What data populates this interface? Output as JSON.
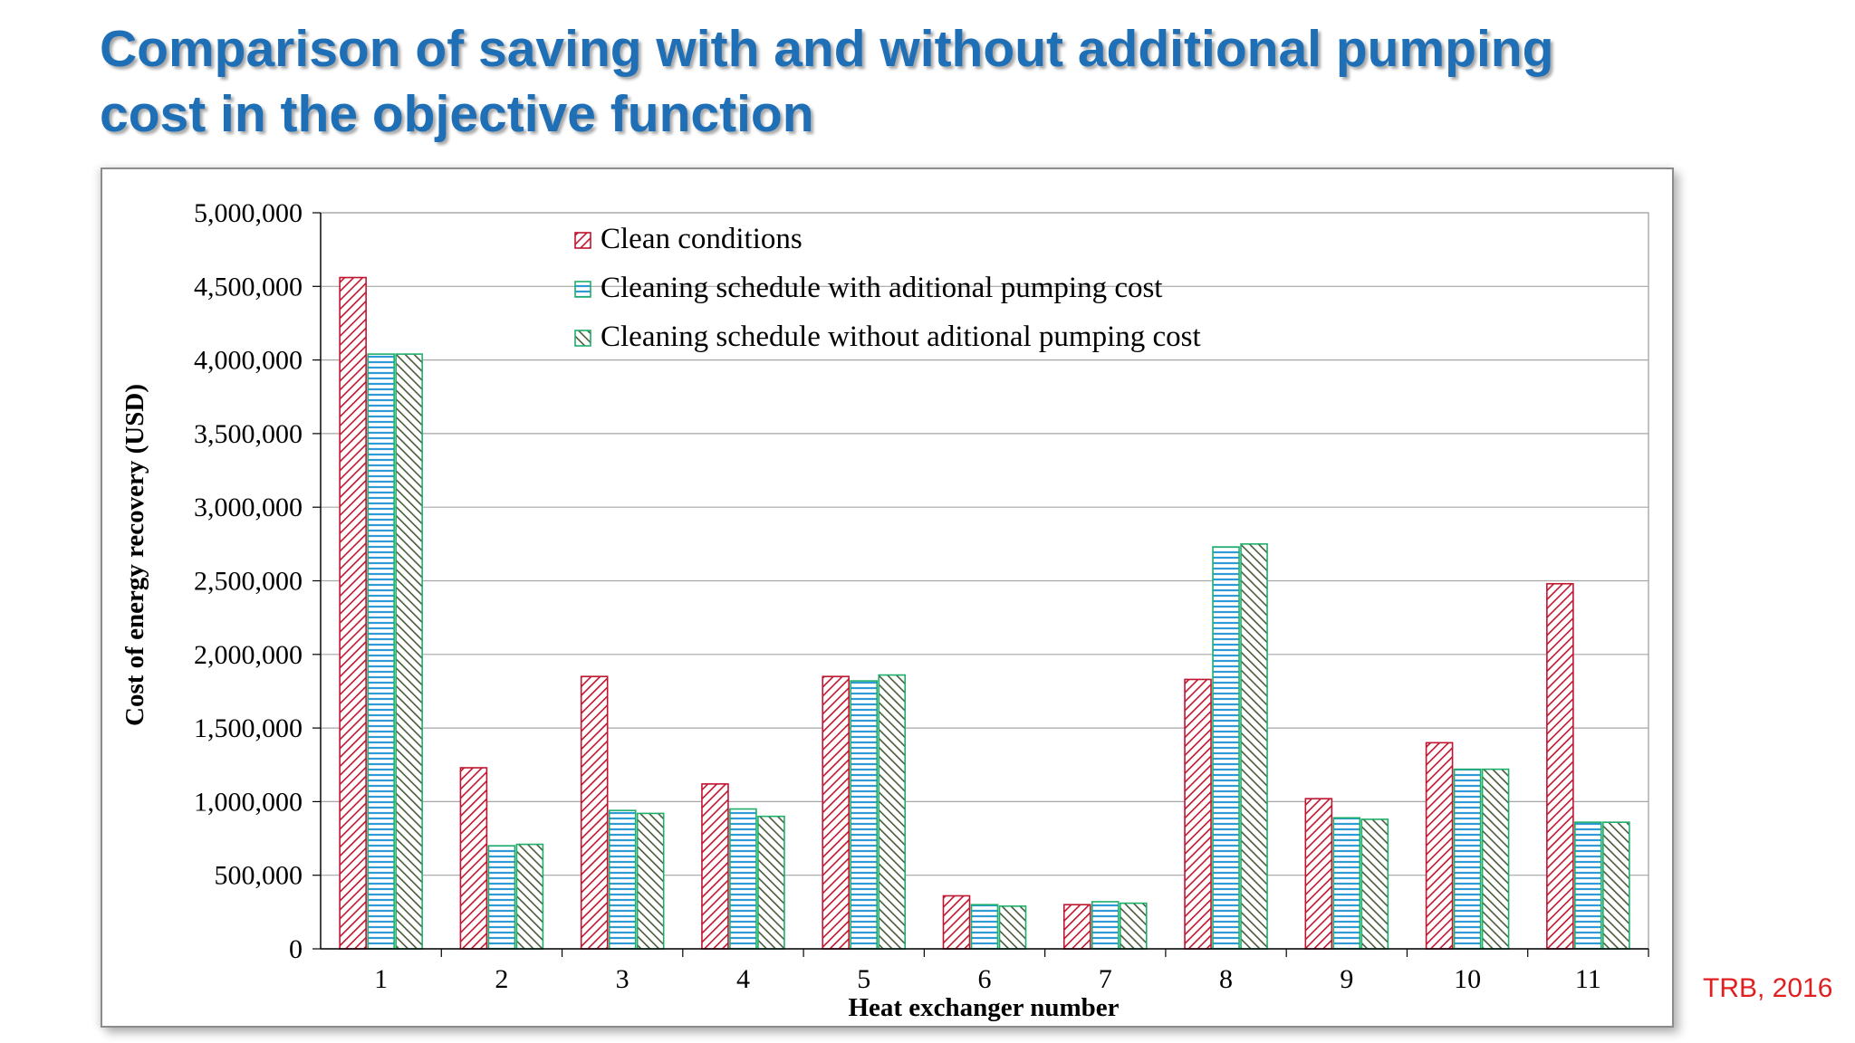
{
  "slide": {
    "title_line1": "Comparison of saving with and without additional pumping",
    "title_line2": "cost in the objective function",
    "citation": "TRB, 2016"
  },
  "chart_data": {
    "type": "bar",
    "title": "",
    "xlabel": "Heat exchanger number",
    "ylabel": "Cost of energy recovery (USD)",
    "ylim": [
      0,
      5000000
    ],
    "yticks": [
      0,
      500000,
      1000000,
      1500000,
      2000000,
      2500000,
      3000000,
      3500000,
      4000000,
      4500000,
      5000000
    ],
    "ytick_labels": [
      "0",
      "500,000",
      "1,000,000",
      "1,500,000",
      "2,000,000",
      "2,500,000",
      "3,000,000",
      "3,500,000",
      "4,000,000",
      "4,500,000",
      "5,000,000"
    ],
    "grid": true,
    "legend_position": "top-center",
    "categories": [
      "1",
      "2",
      "3",
      "4",
      "5",
      "6",
      "7",
      "8",
      "9",
      "10",
      "11"
    ],
    "series": [
      {
        "name": "Clean conditions",
        "color": "#c0152f",
        "pattern": "diagonal-down",
        "values": [
          4560000,
          1230000,
          1850000,
          1120000,
          1850000,
          360000,
          300000,
          1830000,
          1020000,
          1400000,
          2480000
        ]
      },
      {
        "name": "Cleaning schedule with aditional pumping cost",
        "color": "#2e9ad6",
        "pattern": "horizontal",
        "values": [
          4040000,
          700000,
          940000,
          950000,
          1820000,
          300000,
          320000,
          2730000,
          890000,
          1220000,
          860000
        ]
      },
      {
        "name": "Cleaning schedule without aditional pumping cost",
        "color": "#4a5a3a",
        "pattern": "diagonal-up",
        "values": [
          4040000,
          710000,
          920000,
          900000,
          1860000,
          290000,
          310000,
          2750000,
          880000,
          1220000,
          860000
        ]
      }
    ],
    "border_colors": [
      "#c0152f",
      "#1fae6a",
      "#1fae6a"
    ]
  }
}
